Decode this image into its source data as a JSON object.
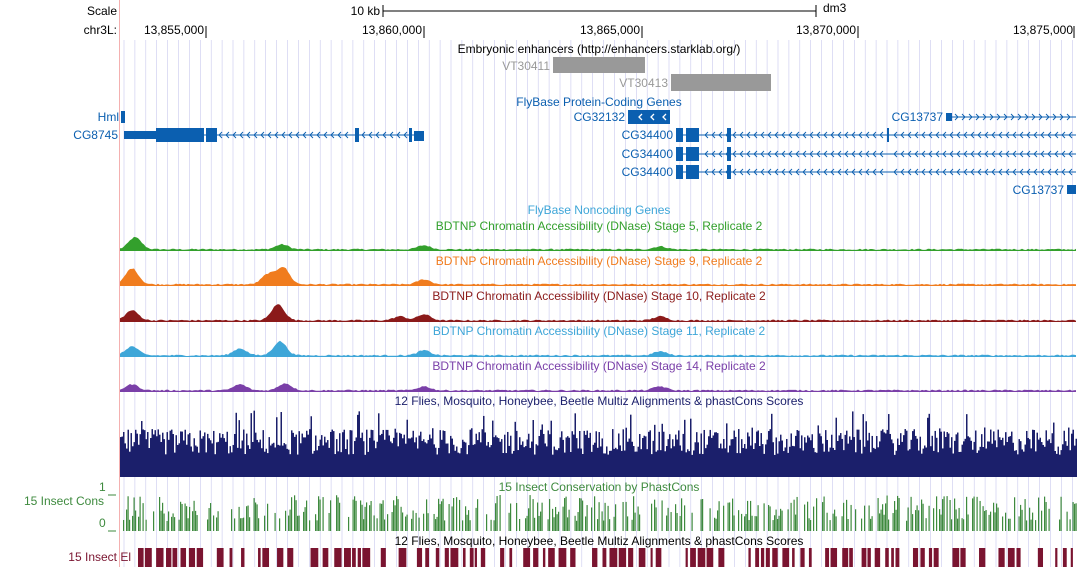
{
  "ruler": {
    "scale_label": "Scale",
    "scale_bar_label": "10 kb",
    "assembly": "dm3",
    "chrom_label": "chr3L:",
    "positions": [
      "13,855,000",
      "13,860,000",
      "13,865,000",
      "13,870,000",
      "13,875,000"
    ]
  },
  "enhancers": {
    "title": "Embryonic enhancers (http://enhancers.starklab.org/)",
    "items": [
      "VT30411",
      "VT30413"
    ]
  },
  "genes": {
    "title": "FlyBase Protein-Coding Genes",
    "labels": {
      "hml": "Hml",
      "cg8745": "CG8745",
      "cg32132": "CG32132",
      "cg34400_a": "CG34400",
      "cg34400_b": "CG34400",
      "cg34400_c": "CG34400",
      "cg13737_a": "CG13737",
      "cg13737_b": "CG13737"
    }
  },
  "noncoding": {
    "title": "FlyBase Noncoding Genes"
  },
  "dnase": [
    {
      "title": "BDTNP Chromatin Accessibility (DNase) Stage 5, Replicate 2",
      "color": "#33a02c"
    },
    {
      "title": "BDTNP Chromatin Accessibility (DNase) Stage 9, Replicate 2",
      "color": "#f07c1e"
    },
    {
      "title": "BDTNP Chromatin Accessibility (DNase) Stage 10, Replicate 2",
      "color": "#8b1a1a"
    },
    {
      "title": "BDTNP Chromatin Accessibility (DNase) Stage 11, Replicate 2",
      "color": "#3ea6d8"
    },
    {
      "title": "BDTNP Chromatin Accessibility (DNase) Stage 14, Replicate 2",
      "color": "#7a3fa8"
    }
  ],
  "multiz": {
    "title": "12 Flies, Mosquito, Honeybee, Beetle Multiz Alignments & phastCons Scores",
    "color": "#1b1f6b"
  },
  "phastcons": {
    "title": "15 Insect Conservation by PhastCons",
    "side_label": "15 Insect Cons",
    "axis_max": "1",
    "axis_min": "0",
    "color": "#3e8a3e"
  },
  "elements": {
    "title": "12 Flies, Mosquito, Honeybee, Beetle Multiz Alignments & phastCons Scores",
    "side_label": "15 Insect El",
    "color": "#7a1430"
  },
  "colors": {
    "gene": "#0b5fb0",
    "enhancer": "#999999",
    "grid": "#c8c8ee",
    "guide": "#f4b0b0",
    "text": "#000000"
  }
}
